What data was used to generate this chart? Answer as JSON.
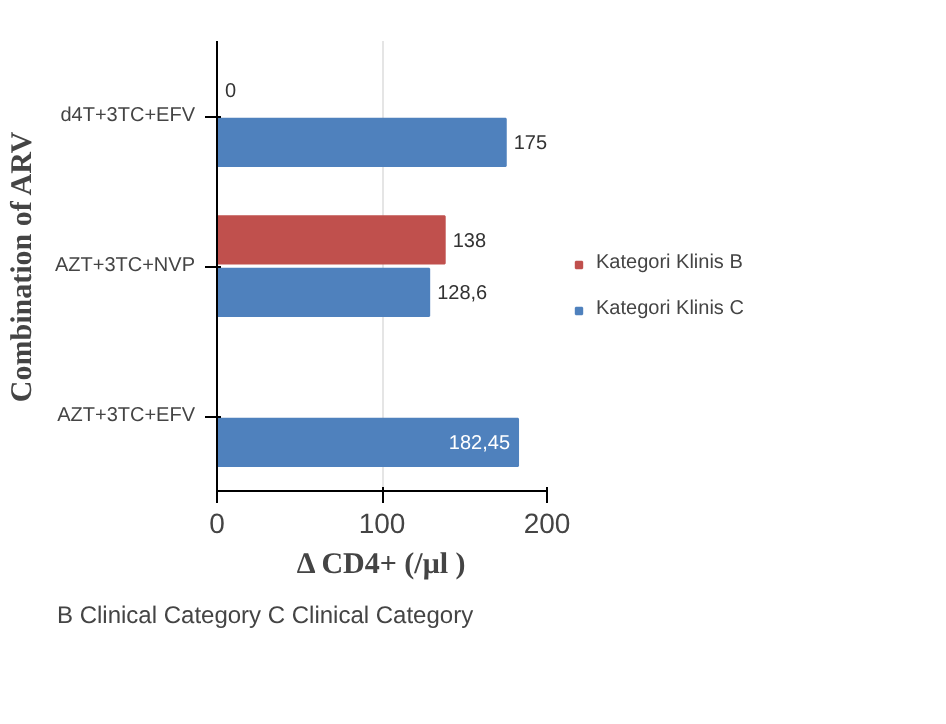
{
  "chart_data": {
    "type": "bar",
    "orientation": "horizontal",
    "xlabel": "Δ CD4+ (/μl )",
    "ylabel": "Combination of ARV",
    "categories": [
      "d4T+3TC+EFV",
      "AZT+3TC+NVP",
      "AZT+3TC+EFV"
    ],
    "series": [
      {
        "name": "Kategori Klinis B",
        "color": "#c0504d",
        "values": [
          0,
          138,
          null
        ],
        "value_labels": [
          "0",
          "138",
          null
        ]
      },
      {
        "name": "Kategori Klinis C",
        "color": "#4f81bd",
        "values": [
          175,
          128.6,
          182.45
        ],
        "value_labels": [
          "175",
          "128,6",
          "182,45"
        ]
      }
    ],
    "xlim": [
      0,
      200
    ],
    "xticks": [
      0,
      100,
      200
    ],
    "grid": "x",
    "legend": "right",
    "annotations": [
      "B Clinical Category C Clinical Category"
    ]
  }
}
